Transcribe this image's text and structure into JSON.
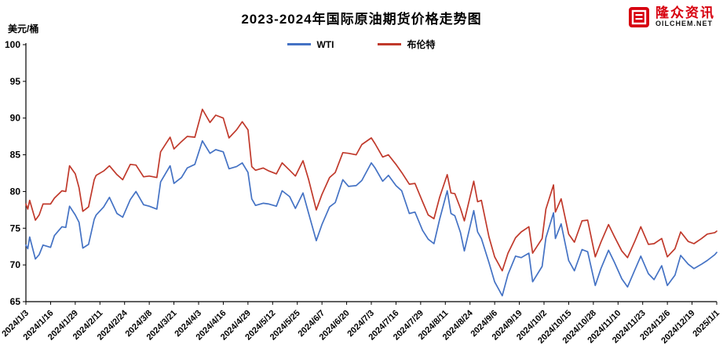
{
  "header": {
    "title": "2023-2024年国际原油期货价格走势图",
    "unit_label": "美元/桶"
  },
  "logo": {
    "brand": "隆众资讯",
    "domain": "OILCHEM.NET",
    "color": "#d7000f"
  },
  "chart_data": {
    "type": "line",
    "title": "2023-2024年国际原油期货价格走势图",
    "xlabel": "",
    "ylabel": "美元/桶",
    "ylim": [
      65,
      100
    ],
    "y_ticks": [
      65,
      70,
      75,
      80,
      85,
      90,
      95,
      100
    ],
    "grid": false,
    "legend_position": "top-center",
    "x_tick_labels": [
      "2024/1/3",
      "2024/1/16",
      "2024/1/29",
      "2024/2/11",
      "2024/2/24",
      "2024/3/8",
      "2024/3/21",
      "2024/4/3",
      "2024/4/16",
      "2024/4/29",
      "2024/5/12",
      "2024/5/25",
      "2024/6/7",
      "2024/6/20",
      "2024/7/3",
      "2024/7/16",
      "2024/7/29",
      "2024/8/11",
      "2024/8/24",
      "2024/9/6",
      "2024/9/19",
      "2024/10/2",
      "2024/10/15",
      "2024/10/28",
      "2024/11/10",
      "2024/11/23",
      "2024/12/6",
      "2024/12/19",
      "2025/1/1"
    ],
    "x": [
      "2024/1/3",
      "2024/1/4",
      "2024/1/5",
      "2024/1/8",
      "2024/1/10",
      "2024/1/12",
      "2024/1/16",
      "2024/1/18",
      "2024/1/22",
      "2024/1/24",
      "2024/1/26",
      "2024/1/29",
      "2024/1/31",
      "2024/2/2",
      "2024/2/5",
      "2024/2/8",
      "2024/2/9",
      "2024/2/13",
      "2024/2/16",
      "2024/2/20",
      "2024/2/23",
      "2024/2/27",
      "2024/3/1",
      "2024/3/5",
      "2024/3/8",
      "2024/3/12",
      "2024/3/14",
      "2024/3/19",
      "2024/3/21",
      "2024/3/25",
      "2024/3/28",
      "2024/4/1",
      "2024/4/5",
      "2024/4/9",
      "2024/4/12",
      "2024/4/16",
      "2024/4/19",
      "2024/4/23",
      "2024/4/26",
      "2024/4/29",
      "2024/5/1",
      "2024/5/3",
      "2024/5/7",
      "2024/5/10",
      "2024/5/14",
      "2024/5/17",
      "2024/5/21",
      "2024/5/24",
      "2024/5/28",
      "2024/5/31",
      "2024/6/4",
      "2024/6/7",
      "2024/6/11",
      "2024/6/14",
      "2024/6/18",
      "2024/6/21",
      "2024/6/25",
      "2024/6/28",
      "2024/7/3",
      "2024/7/5",
      "2024/7/9",
      "2024/7/12",
      "2024/7/16",
      "2024/7/19",
      "2024/7/23",
      "2024/7/26",
      "2024/7/30",
      "2024/8/2",
      "2024/8/5",
      "2024/8/8",
      "2024/8/12",
      "2024/8/14",
      "2024/8/16",
      "2024/8/19",
      "2024/8/21",
      "2024/8/26",
      "2024/8/28",
      "2024/8/30",
      "2024/9/3",
      "2024/9/6",
      "2024/9/10",
      "2024/9/13",
      "2024/9/17",
      "2024/9/20",
      "2024/9/24",
      "2024/9/26",
      "2024/10/1",
      "2024/10/3",
      "2024/10/7",
      "2024/10/8",
      "2024/10/11",
      "2024/10/15",
      "2024/10/18",
      "2024/10/22",
      "2024/10/25",
      "2024/10/29",
      "2024/11/1",
      "2024/11/5",
      "2024/11/8",
      "2024/11/12",
      "2024/11/15",
      "2024/11/19",
      "2024/11/22",
      "2024/11/26",
      "2024/11/29",
      "2024/12/3",
      "2024/12/6",
      "2024/12/10",
      "2024/12/13",
      "2024/12/17",
      "2024/12/20",
      "2024/12/24",
      "2024/12/27",
      "2024/12/31",
      "2025/1/1"
    ],
    "series": [
      {
        "name": "WTI",
        "color": "#4472c4",
        "values": [
          72.7,
          72.2,
          73.8,
          70.8,
          71.4,
          72.7,
          72.4,
          74.0,
          75.2,
          75.1,
          78.0,
          76.8,
          75.8,
          72.3,
          72.8,
          76.2,
          76.8,
          77.9,
          79.2,
          77.0,
          76.5,
          78.9,
          80.0,
          78.2,
          78.0,
          77.6,
          81.3,
          83.5,
          81.1,
          81.9,
          83.2,
          83.7,
          86.9,
          85.2,
          85.7,
          85.4,
          83.1,
          83.4,
          83.9,
          82.6,
          79.0,
          78.1,
          78.4,
          78.3,
          78.0,
          80.1,
          79.3,
          77.7,
          79.8,
          77.0,
          73.3,
          75.5,
          77.9,
          78.5,
          81.6,
          80.7,
          80.8,
          81.5,
          83.9,
          83.2,
          81.4,
          82.2,
          80.8,
          80.1,
          77.0,
          77.2,
          74.7,
          73.5,
          72.9,
          76.2,
          80.1,
          77.0,
          76.7,
          74.4,
          71.9,
          77.4,
          74.5,
          73.6,
          70.3,
          67.7,
          65.8,
          68.7,
          71.2,
          71.0,
          71.6,
          67.7,
          69.8,
          73.7,
          77.1,
          73.6,
          75.6,
          70.6,
          69.2,
          72.1,
          71.8,
          67.2,
          69.5,
          72.0,
          70.4,
          68.1,
          67.0,
          69.4,
          71.2,
          68.8,
          68.0,
          69.9,
          67.2,
          68.6,
          71.3,
          70.1,
          69.5,
          70.1,
          70.6,
          71.4,
          71.7
        ]
      },
      {
        "name": "布伦特",
        "color": "#c0392b",
        "values": [
          78.3,
          77.6,
          78.8,
          76.1,
          76.8,
          78.3,
          78.3,
          79.1,
          80.1,
          80.0,
          83.5,
          82.4,
          80.5,
          77.3,
          77.9,
          81.6,
          82.2,
          82.8,
          83.5,
          82.3,
          81.6,
          83.7,
          83.6,
          82.0,
          82.1,
          81.9,
          85.4,
          87.4,
          85.8,
          86.8,
          87.5,
          87.4,
          91.2,
          89.4,
          90.4,
          90.0,
          87.3,
          88.4,
          89.5,
          88.4,
          83.4,
          82.9,
          83.2,
          82.8,
          82.4,
          83.9,
          82.9,
          82.1,
          84.2,
          81.6,
          77.5,
          79.6,
          81.9,
          82.6,
          85.3,
          85.2,
          85.0,
          86.4,
          87.3,
          86.5,
          84.7,
          85.0,
          83.7,
          82.6,
          81.0,
          81.1,
          78.6,
          76.8,
          76.3,
          79.2,
          82.3,
          79.8,
          79.7,
          77.7,
          76.0,
          81.4,
          78.6,
          78.8,
          73.8,
          71.1,
          69.2,
          71.6,
          73.7,
          74.5,
          75.2,
          71.6,
          73.6,
          77.6,
          80.9,
          77.2,
          79.0,
          74.2,
          73.1,
          76.0,
          76.1,
          71.1,
          73.1,
          75.5,
          73.9,
          71.9,
          71.0,
          73.3,
          75.2,
          72.8,
          72.9,
          73.6,
          71.1,
          72.2,
          74.5,
          73.2,
          72.9,
          73.6,
          74.2,
          74.4,
          74.6
        ]
      }
    ]
  }
}
